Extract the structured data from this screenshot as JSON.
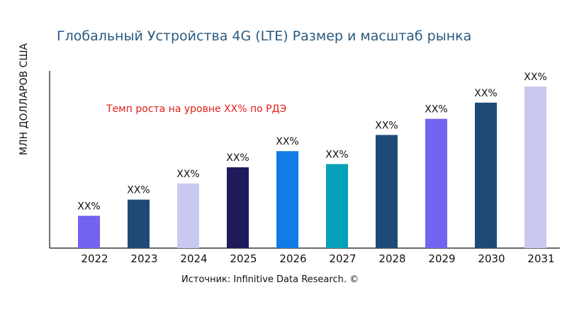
{
  "chart_data": {
    "type": "bar",
    "title": "Глобальный Устройства 4G (LTE) Размер и масштаб рынка",
    "xlabel": "",
    "ylabel": "МЛН ДОЛЛАРОВ США",
    "categories": [
      "2022",
      "2023",
      "2024",
      "2025",
      "2026",
      "2027",
      "2028",
      "2029",
      "2030",
      "2031"
    ],
    "values": [
      20,
      30,
      40,
      50,
      60,
      52,
      70,
      80,
      90,
      100
    ],
    "data_labels": [
      "XX%",
      "XX%",
      "XX%",
      "XX%",
      "XX%",
      "XX%",
      "XX%",
      "XX%",
      "XX%",
      "XX%"
    ],
    "colors": [
      "#7263f0",
      "#1f4a78",
      "#c8c8f0",
      "#1f1a5a",
      "#127be6",
      "#04a2b8",
      "#1f4a78",
      "#7263f0",
      "#1f4a78",
      "#c8c8f0"
    ],
    "ylim": [
      0,
      100
    ],
    "grid": false,
    "annotation": "Темп роста на уровне XX% по РДЭ",
    "source": "Источник: Infinitive Data Research. ©"
  }
}
